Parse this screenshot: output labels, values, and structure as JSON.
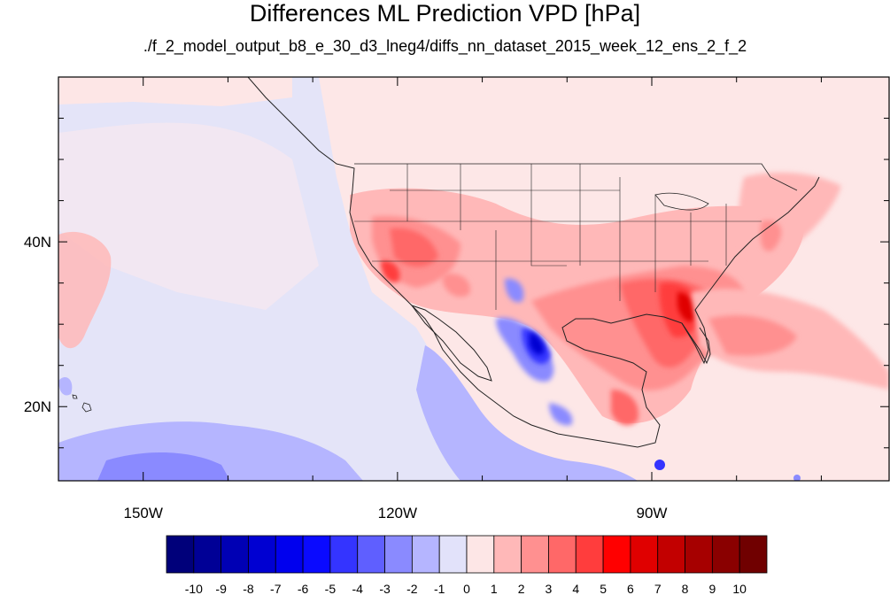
{
  "title": "Differences ML Prediction VPD [hPa]",
  "subtitle": "./f_2_model_output_b8_e_30_d3_lneg4/diffs_nn_dataset_2015_week_12_ens_2_f_2",
  "map": {
    "lon_range": [
      -160,
      -62
    ],
    "lat_range": [
      11,
      60
    ],
    "lat_ticks": [
      {
        "value": 40,
        "label": "40N"
      },
      {
        "value": 20,
        "label": "20N"
      }
    ],
    "lon_ticks": [
      {
        "value": -150,
        "label": "150W"
      },
      {
        "value": -120,
        "label": "120W"
      },
      {
        "value": -90,
        "label": "90W"
      }
    ]
  },
  "colorbar": {
    "labels": [
      "-10",
      "-9",
      "-8",
      "-7",
      "-6",
      "-5",
      "-4",
      "-3",
      "-2",
      "-1",
      "0",
      "1",
      "2",
      "3",
      "4",
      "5",
      "6",
      "7",
      "8",
      "9",
      "10"
    ],
    "colors": [
      "#00007a",
      "#000096",
      "#0000b4",
      "#0000d2",
      "#0000ee",
      "#0a0aff",
      "#3434ff",
      "#5f5fff",
      "#8a8aff",
      "#b5b5ff",
      "#e2e2fa",
      "#fde6e6",
      "#ffb8b8",
      "#ff9090",
      "#ff6868",
      "#ff3d3d",
      "#ff0000",
      "#e00000",
      "#c20000",
      "#a60000",
      "#8a0000",
      "#700000"
    ]
  }
}
